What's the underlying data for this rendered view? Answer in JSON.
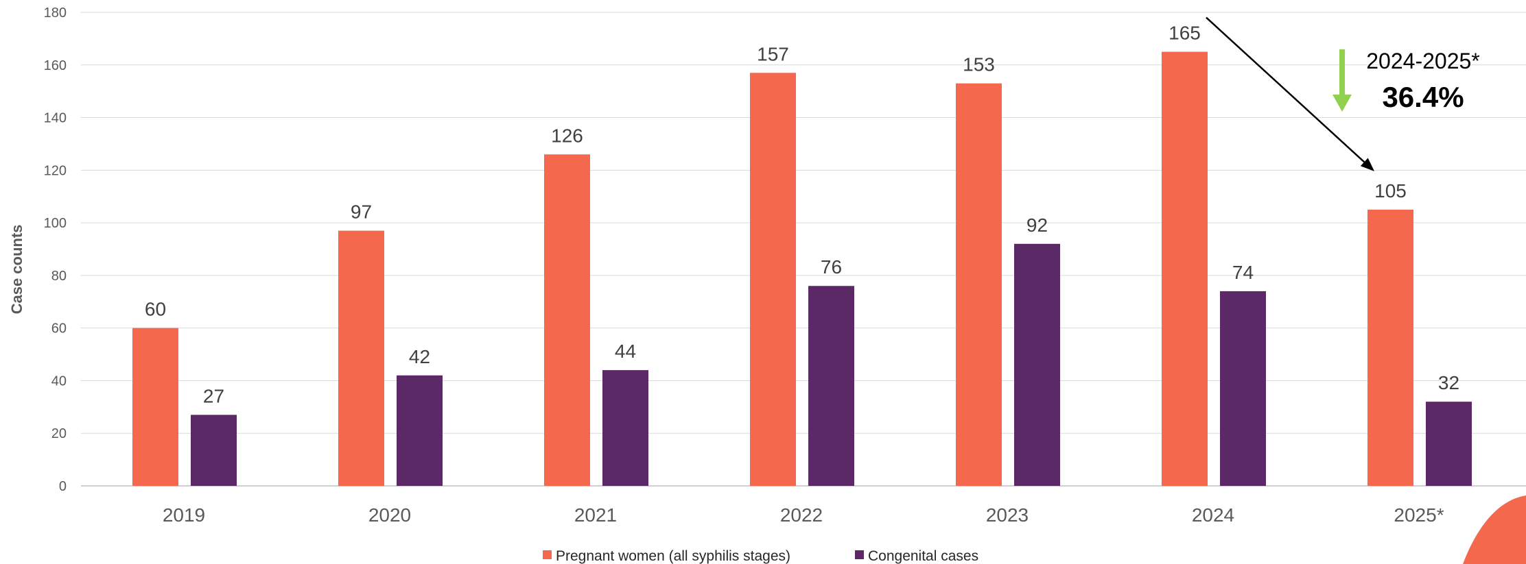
{
  "chart_data": {
    "type": "bar",
    "ylabel": "Case counts",
    "xlabel": "",
    "ylim": [
      0,
      180
    ],
    "yticks": [
      0,
      20,
      40,
      60,
      80,
      100,
      120,
      140,
      160,
      180
    ],
    "grid": true,
    "legend_position": "bottom",
    "categories": [
      "2019",
      "2020",
      "2021",
      "2022",
      "2023",
      "2024",
      "2025*"
    ],
    "series": [
      {
        "name": "Pregnant women (all syphilis stages)",
        "color": "#F4694E",
        "values": [
          60,
          97,
          126,
          157,
          153,
          165,
          105
        ]
      },
      {
        "name": "Congenital cases",
        "color": "#5B2965",
        "values": [
          27,
          42,
          44,
          76,
          92,
          74,
          32
        ]
      }
    ],
    "annotation": {
      "period": "2024-2025*",
      "percent": "36.4%",
      "direction": "decrease",
      "arrow_color": "#92D050",
      "from": {
        "category": "2024",
        "value": 165
      },
      "to": {
        "category": "2025*",
        "value": 105
      }
    },
    "decoration_color": "#F4694E"
  }
}
